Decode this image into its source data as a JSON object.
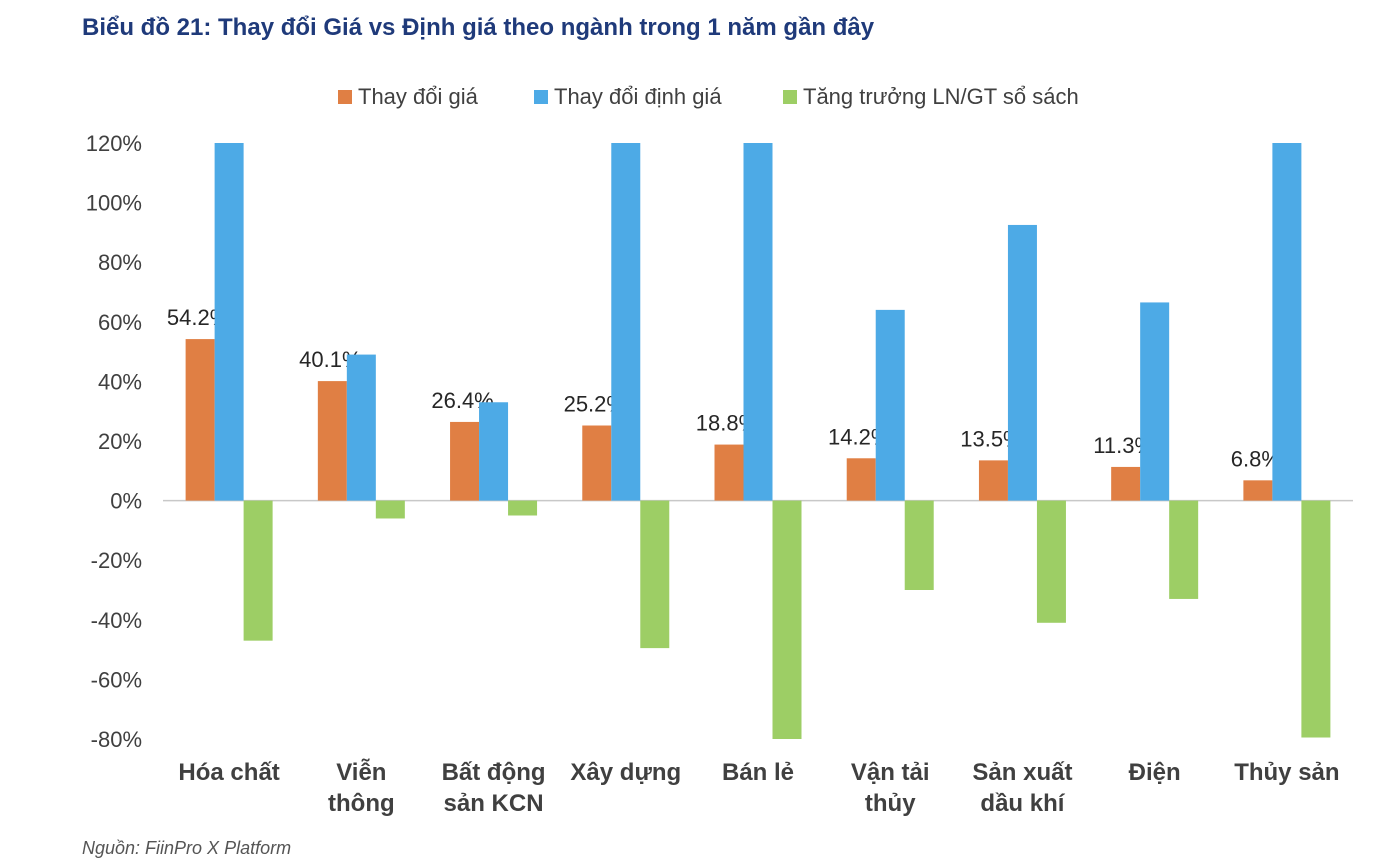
{
  "chart_data": {
    "type": "bar",
    "title": "Biểu đồ 21: Thay đổi Giá vs Định giá theo ngành trong 1 năm gần đây",
    "categories": [
      [
        "Hóa chất"
      ],
      [
        "Viễn",
        "thông"
      ],
      [
        "Bất động",
        "sản KCN"
      ],
      [
        "Xây dựng"
      ],
      [
        "Bán lẻ"
      ],
      [
        "Vận tải",
        "thủy"
      ],
      [
        "Sản xuất",
        "dầu khí"
      ],
      [
        "Điện"
      ],
      [
        "Thủy sản"
      ]
    ],
    "series": [
      {
        "name": "Thay đổi giá",
        "color": "#e07f44",
        "values": [
          54.2,
          40.1,
          26.4,
          25.2,
          18.8,
          14.2,
          13.5,
          11.3,
          6.8
        ],
        "labels": [
          "54.2%",
          "40.1%",
          "26.4%",
          "25.2%",
          "18.8%",
          "14.2%",
          "13.5%",
          "11.3%",
          "6.8%"
        ]
      },
      {
        "name": "Thay đổi định giá",
        "color": "#4daae6",
        "values": [
          120,
          49,
          33,
          120,
          120,
          64,
          92.5,
          66.5,
          120
        ]
      },
      {
        "name": "Tăng trưởng LN/GT sổ sách",
        "color": "#9dce65",
        "values": [
          -47,
          -6,
          -5,
          -49.5,
          -80.5,
          -30,
          -41,
          -33,
          -79.5
        ]
      }
    ],
    "ylim": [
      -80,
      120
    ],
    "yticks": [
      120,
      100,
      80,
      60,
      40,
      20,
      0,
      -20,
      -40,
      -60,
      -80
    ],
    "ytick_labels": [
      "120%",
      "100%",
      "80%",
      "60%",
      "40%",
      "20%",
      "0%",
      "-20%",
      "-40%",
      "-60%",
      "-80%"
    ],
    "xlabel": "",
    "ylabel": "",
    "legend_position": "top-center"
  },
  "source_text": "Nguồn: FiinPro X Platform"
}
